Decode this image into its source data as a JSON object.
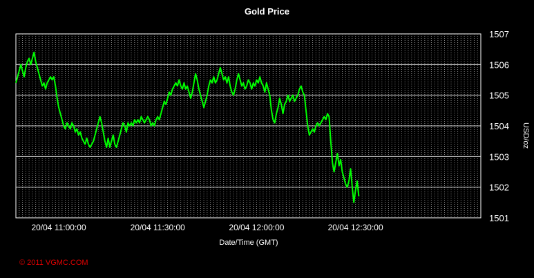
{
  "chart_data": {
    "type": "line",
    "title": "Gold Price",
    "xlabel": "Date/Time (GMT)",
    "ylabel": "USD/oz",
    "ylim": [
      1501,
      1507
    ],
    "y_ticks": [
      "1501",
      "1502",
      "1503",
      "1504",
      "1505",
      "1506",
      "1507"
    ],
    "x_ticks": [
      {
        "label": "20/04 11:00:00",
        "minute": 0
      },
      {
        "label": "20/04 11:30:00",
        "minute": 30
      },
      {
        "label": "20/04 12:00:00",
        "minute": 60
      },
      {
        "label": "20/04 12:30:00",
        "minute": 90
      }
    ],
    "x_range_minutes": [
      -13,
      128
    ],
    "grid": true,
    "line_color": "#00ff00",
    "series": [
      {
        "values": [
          [
            -13,
            1505.4
          ],
          [
            -12.5,
            1505.6
          ],
          [
            -12,
            1505.8
          ],
          [
            -11.5,
            1506.0
          ],
          [
            -11,
            1505.8
          ],
          [
            -10.5,
            1505.6
          ],
          [
            -10,
            1505.9
          ],
          [
            -9.5,
            1506.1
          ],
          [
            -9,
            1506.2
          ],
          [
            -8.5,
            1506.0
          ],
          [
            -8,
            1506.2
          ],
          [
            -7.5,
            1506.4
          ],
          [
            -7,
            1506.1
          ],
          [
            -6.5,
            1505.9
          ],
          [
            -6,
            1505.7
          ],
          [
            -5.5,
            1505.5
          ],
          [
            -5,
            1505.3
          ],
          [
            -4.5,
            1505.4
          ],
          [
            -4,
            1505.2
          ],
          [
            -3.5,
            1505.4
          ],
          [
            -3,
            1505.5
          ],
          [
            -2.5,
            1505.6
          ],
          [
            -2,
            1505.5
          ],
          [
            -1.5,
            1505.6
          ],
          [
            -1,
            1505.3
          ],
          [
            -0.5,
            1504.9
          ],
          [
            0,
            1504.6
          ],
          [
            0.5,
            1504.4
          ],
          [
            1,
            1504.2
          ],
          [
            1.5,
            1504.0
          ],
          [
            2,
            1503.9
          ],
          [
            2.5,
            1504.1
          ],
          [
            3,
            1504.0
          ],
          [
            3.5,
            1503.9
          ],
          [
            4,
            1504.1
          ],
          [
            4.5,
            1504.0
          ],
          [
            5,
            1503.8
          ],
          [
            5.5,
            1503.9
          ],
          [
            6,
            1503.7
          ],
          [
            6.5,
            1503.8
          ],
          [
            7,
            1503.6
          ],
          [
            7.5,
            1503.5
          ],
          [
            8,
            1503.4
          ],
          [
            8.5,
            1503.6
          ],
          [
            9,
            1503.4
          ],
          [
            9.5,
            1503.3
          ],
          [
            10,
            1503.4
          ],
          [
            10.5,
            1503.5
          ],
          [
            11,
            1503.7
          ],
          [
            11.5,
            1503.9
          ],
          [
            12,
            1504.1
          ],
          [
            12.5,
            1504.3
          ],
          [
            13,
            1504.1
          ],
          [
            13.5,
            1503.8
          ],
          [
            14,
            1503.5
          ],
          [
            14.5,
            1503.3
          ],
          [
            15,
            1503.6
          ],
          [
            15.5,
            1503.3
          ],
          [
            16,
            1503.5
          ],
          [
            16.5,
            1503.7
          ],
          [
            17,
            1503.4
          ],
          [
            17.5,
            1503.3
          ],
          [
            18,
            1503.5
          ],
          [
            18.5,
            1503.7
          ],
          [
            19,
            1503.9
          ],
          [
            19.5,
            1504.1
          ],
          [
            20,
            1504.0
          ],
          [
            20.5,
            1503.8
          ],
          [
            21,
            1504.1
          ],
          [
            21.5,
            1504.0
          ],
          [
            22,
            1504.1
          ],
          [
            22.5,
            1504.0
          ],
          [
            23,
            1504.2
          ],
          [
            23.5,
            1504.1
          ],
          [
            24,
            1504.2
          ],
          [
            24.5,
            1504.1
          ],
          [
            25,
            1504.3
          ],
          [
            25.5,
            1504.2
          ],
          [
            26,
            1504.1
          ],
          [
            26.5,
            1504.2
          ],
          [
            27,
            1504.3
          ],
          [
            27.5,
            1504.2
          ],
          [
            28,
            1504.0
          ],
          [
            28.5,
            1504.1
          ],
          [
            29,
            1504.0
          ],
          [
            29.5,
            1504.2
          ],
          [
            30,
            1504.3
          ],
          [
            30.5,
            1504.2
          ],
          [
            31,
            1504.4
          ],
          [
            31.5,
            1504.6
          ],
          [
            32,
            1504.8
          ],
          [
            32.5,
            1504.7
          ],
          [
            33,
            1504.9
          ],
          [
            33.5,
            1505.1
          ],
          [
            34,
            1505.0
          ],
          [
            34.5,
            1505.2
          ],
          [
            35,
            1505.3
          ],
          [
            35.5,
            1505.4
          ],
          [
            36,
            1505.3
          ],
          [
            36.5,
            1505.5
          ],
          [
            37,
            1505.3
          ],
          [
            37.5,
            1505.2
          ],
          [
            38,
            1505.4
          ],
          [
            38.5,
            1505.2
          ],
          [
            39,
            1505.3
          ],
          [
            39.5,
            1505.1
          ],
          [
            40,
            1504.9
          ],
          [
            40.5,
            1505.1
          ],
          [
            41,
            1505.4
          ],
          [
            41.5,
            1505.7
          ],
          [
            42,
            1505.5
          ],
          [
            42.5,
            1505.2
          ],
          [
            43,
            1505.0
          ],
          [
            43.5,
            1504.8
          ],
          [
            44,
            1504.6
          ],
          [
            44.5,
            1504.8
          ],
          [
            45,
            1505.0
          ],
          [
            45.5,
            1505.3
          ],
          [
            46,
            1505.5
          ],
          [
            46.5,
            1505.4
          ],
          [
            47,
            1505.6
          ],
          [
            47.5,
            1505.4
          ],
          [
            48,
            1505.5
          ],
          [
            48.5,
            1505.7
          ],
          [
            49,
            1505.9
          ],
          [
            49.5,
            1505.7
          ],
          [
            50,
            1505.5
          ],
          [
            50.5,
            1505.6
          ],
          [
            51,
            1505.4
          ],
          [
            51.5,
            1505.6
          ],
          [
            52,
            1505.3
          ],
          [
            52.5,
            1505.1
          ],
          [
            53,
            1505.0
          ],
          [
            53.5,
            1505.2
          ],
          [
            54,
            1505.5
          ],
          [
            54.5,
            1505.7
          ],
          [
            55,
            1505.5
          ],
          [
            55.5,
            1505.3
          ],
          [
            56,
            1505.4
          ],
          [
            56.5,
            1505.2
          ],
          [
            57,
            1505.3
          ],
          [
            57.5,
            1505.5
          ],
          [
            58,
            1505.4
          ],
          [
            58.5,
            1505.2
          ],
          [
            59,
            1505.4
          ],
          [
            59.5,
            1505.3
          ],
          [
            60,
            1505.5
          ],
          [
            60.5,
            1505.4
          ],
          [
            61,
            1505.6
          ],
          [
            61.5,
            1505.4
          ],
          [
            62,
            1505.3
          ],
          [
            62.5,
            1505.1
          ],
          [
            63,
            1505.4
          ],
          [
            63.5,
            1505.2
          ],
          [
            64,
            1505.0
          ],
          [
            64.5,
            1504.5
          ],
          [
            65,
            1504.2
          ],
          [
            65.5,
            1504.1
          ],
          [
            66,
            1504.4
          ],
          [
            66.5,
            1504.6
          ],
          [
            67,
            1504.9
          ],
          [
            67.5,
            1504.7
          ],
          [
            68,
            1504.4
          ],
          [
            68.5,
            1504.7
          ],
          [
            69,
            1504.8
          ],
          [
            69.5,
            1505.0
          ],
          [
            70,
            1504.8
          ],
          [
            70.5,
            1504.9
          ],
          [
            71,
            1505.0
          ],
          [
            71.5,
            1504.8
          ],
          [
            72,
            1504.9
          ],
          [
            72.5,
            1505.0
          ],
          [
            73,
            1505.2
          ],
          [
            73.5,
            1505.3
          ],
          [
            74,
            1505.1
          ],
          [
            74.5,
            1505.0
          ],
          [
            75,
            1504.5
          ],
          [
            75.5,
            1504.0
          ],
          [
            76,
            1503.7
          ],
          [
            76.5,
            1503.8
          ],
          [
            77,
            1503.9
          ],
          [
            77.5,
            1503.8
          ],
          [
            78,
            1504.0
          ],
          [
            78.5,
            1504.1
          ],
          [
            79,
            1504.0
          ],
          [
            79.5,
            1504.1
          ],
          [
            80,
            1504.2
          ],
          [
            80.5,
            1504.3
          ],
          [
            81,
            1504.2
          ],
          [
            81.5,
            1504.4
          ],
          [
            82,
            1504.3
          ],
          [
            82.5,
            1503.5
          ],
          [
            83,
            1502.8
          ],
          [
            83.5,
            1502.5
          ],
          [
            84,
            1502.8
          ],
          [
            84.5,
            1503.1
          ],
          [
            85,
            1502.7
          ],
          [
            85.5,
            1502.9
          ],
          [
            86,
            1502.5
          ],
          [
            86.5,
            1502.3
          ],
          [
            87,
            1502.1
          ],
          [
            87.5,
            1502.0
          ],
          [
            88,
            1502.2
          ],
          [
            88.5,
            1502.6
          ],
          [
            89,
            1502.0
          ],
          [
            89.5,
            1501.5
          ],
          [
            90,
            1501.9
          ],
          [
            90.5,
            1502.2
          ],
          [
            91,
            1501.7
          ]
        ]
      }
    ]
  },
  "copyright": "© 2011 VGMC.COM"
}
